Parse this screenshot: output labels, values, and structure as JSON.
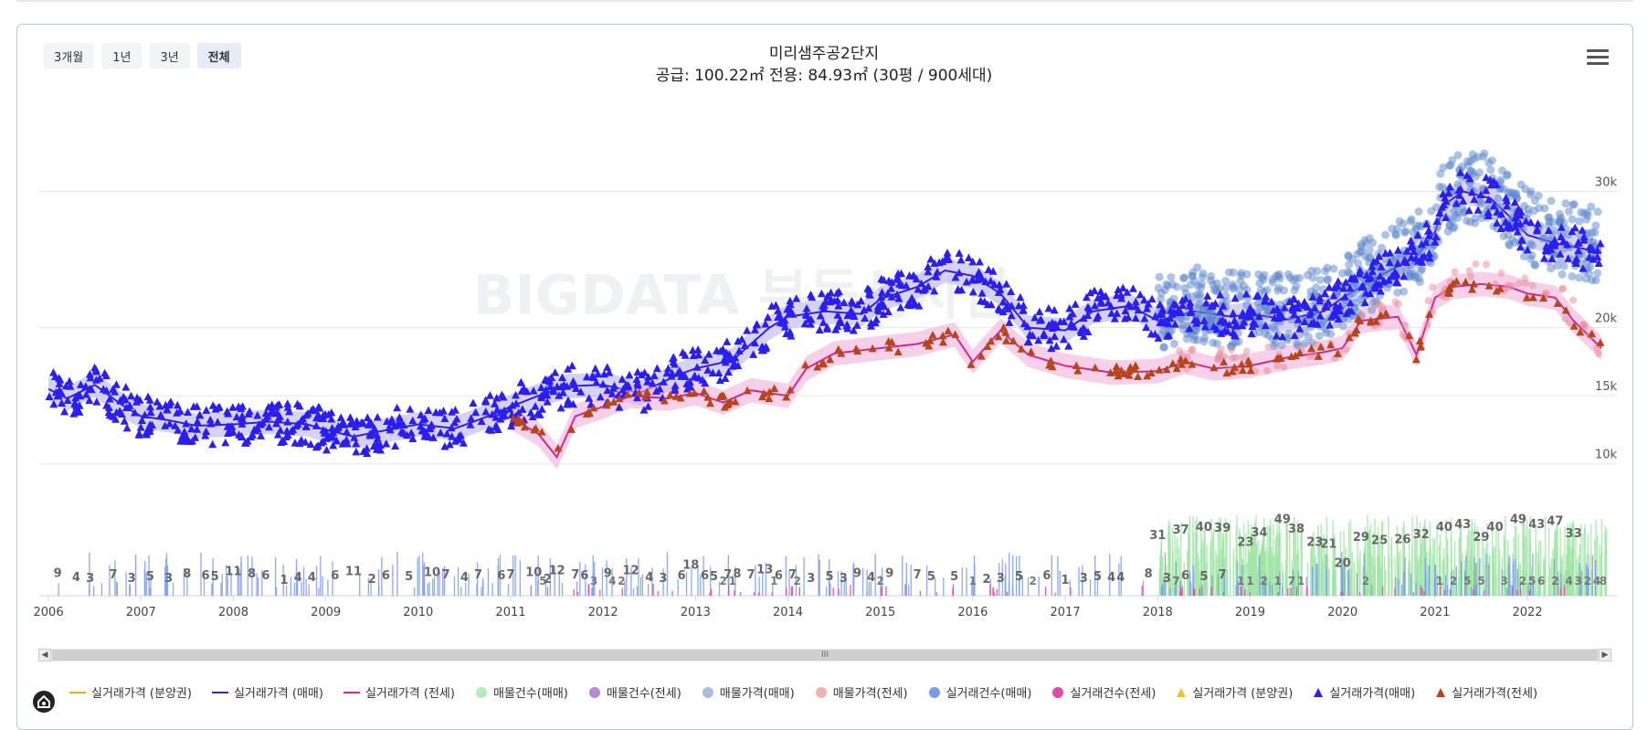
{
  "range_buttons": [
    {
      "label": "3개월",
      "active": false
    },
    {
      "label": "1년",
      "active": false
    },
    {
      "label": "3년",
      "active": false
    },
    {
      "label": "전체",
      "active": true
    }
  ],
  "menu_icon": "hamburger-menu-icon",
  "watermark": "BIGDATA 부동산지인",
  "scroll_thumb_label": "III",
  "colors": {
    "sale_line": "#3a1fe0",
    "sale_band": "#b9b4f0",
    "jeonse_line": "#d12a8e",
    "jeonse_band": "#f0b0d8",
    "sale_points": "#2a1ff0",
    "jeonse_points": "#b5451b",
    "listing_sale": "#5b86cc",
    "listing_jeonse": "#e88a9a",
    "count_sale": "#7a9be8",
    "count_jeonse": "#e04aa8",
    "listing_count_sale": "#9fe3a4",
    "grid": "#e6e6e6"
  },
  "legend": [
    {
      "label": "실거래가격 (분양권)",
      "type": "line",
      "color": "#f5a623"
    },
    {
      "label": "실거래가격 (매매)",
      "type": "line",
      "color": "#3a1fe0"
    },
    {
      "label": "실거래가격 (전세)",
      "type": "line",
      "color": "#d12a8e"
    },
    {
      "label": "매물건수(매매)",
      "type": "circle",
      "color": "#b4ecb8"
    },
    {
      "label": "매물건수(전세)",
      "type": "circle",
      "color": "#b58ad0"
    },
    {
      "label": "매물가격(매매)",
      "type": "circle",
      "color": "#a9bde0"
    },
    {
      "label": "매물가격(전세)",
      "type": "circle",
      "color": "#f2b1b1"
    },
    {
      "label": "실거래건수(매매)",
      "type": "circle",
      "color": "#7a9be8"
    },
    {
      "label": "실거래건수(전세)",
      "type": "circle",
      "color": "#e04aa8"
    },
    {
      "label": "실거래가격 (분양권)",
      "type": "triangle",
      "color": "#f0c030"
    },
    {
      "label": "실거래가격(매매)",
      "type": "triangle",
      "color": "#2a1ff0"
    },
    {
      "label": "실거래가격(전세)",
      "type": "triangle",
      "color": "#b5451b"
    }
  ],
  "chart_data": {
    "type": "line",
    "title": "미리샘주공2단지",
    "subtitle": "공급: 100.22㎡ 전용: 84.93㎡ (30평 / 900세대)",
    "xlabel": "",
    "ylabel": "",
    "x_ticks": [
      "2006",
      "2007",
      "2008",
      "2009",
      "2010",
      "2011",
      "2012",
      "2013",
      "2014",
      "2015",
      "2016",
      "2017",
      "2018",
      "2019",
      "2020",
      "2021",
      "2022"
    ],
    "xlim": [
      2005.95,
      2022.85
    ],
    "y_ticks": [
      {
        "value": 10000,
        "label": "10k"
      },
      {
        "value": 15000,
        "label": "15k"
      },
      {
        "value": 20000,
        "label": "20k"
      },
      {
        "value": 30000,
        "label": "30k"
      }
    ],
    "ylim": [
      7500,
      36000
    ],
    "grid": true,
    "legend_position": "bottom",
    "series": [
      {
        "name": "실거래가격 (매매)",
        "type": "line",
        "points": [
          [
            2006.0,
            15500
          ],
          [
            2006.2,
            14800
          ],
          [
            2006.5,
            15800
          ],
          [
            2006.8,
            14300
          ],
          [
            2007.0,
            13500
          ],
          [
            2007.3,
            13200
          ],
          [
            2007.6,
            12800
          ],
          [
            2008.0,
            12900
          ],
          [
            2008.4,
            13100
          ],
          [
            2008.8,
            12900
          ],
          [
            2009.0,
            12500
          ],
          [
            2009.3,
            12000
          ],
          [
            2009.6,
            12400
          ],
          [
            2010.0,
            12900
          ],
          [
            2010.4,
            12600
          ],
          [
            2010.8,
            13600
          ],
          [
            2011.0,
            14200
          ],
          [
            2011.3,
            15000
          ],
          [
            2011.6,
            15700
          ],
          [
            2012.0,
            15800
          ],
          [
            2012.4,
            15200
          ],
          [
            2012.8,
            16500
          ],
          [
            2013.0,
            17000
          ],
          [
            2013.4,
            17600
          ],
          [
            2013.8,
            20000
          ],
          [
            2014.0,
            20800
          ],
          [
            2014.4,
            21200
          ],
          [
            2014.8,
            21000
          ],
          [
            2015.0,
            22100
          ],
          [
            2015.4,
            23000
          ],
          [
            2015.7,
            24200
          ],
          [
            2016.0,
            23800
          ],
          [
            2016.3,
            22500
          ],
          [
            2016.6,
            20000
          ],
          [
            2017.0,
            19800
          ],
          [
            2017.3,
            21200
          ],
          [
            2017.7,
            21600
          ],
          [
            2018.0,
            20500
          ],
          [
            2018.4,
            21200
          ],
          [
            2018.8,
            20800
          ],
          [
            2019.0,
            21000
          ],
          [
            2019.4,
            20600
          ],
          [
            2019.8,
            21200
          ],
          [
            2020.0,
            22200
          ],
          [
            2020.4,
            23800
          ],
          [
            2020.8,
            25200
          ],
          [
            2021.0,
            27000
          ],
          [
            2021.1,
            29000
          ],
          [
            2021.3,
            30000
          ],
          [
            2021.6,
            29500
          ],
          [
            2021.8,
            28200
          ],
          [
            2022.0,
            26800
          ],
          [
            2022.3,
            26200
          ],
          [
            2022.6,
            25800
          ],
          [
            2022.8,
            25500
          ]
        ]
      },
      {
        "name": "실거래가격 (전세)",
        "type": "line",
        "points": [
          [
            2011.0,
            13400
          ],
          [
            2011.3,
            12200
          ],
          [
            2011.5,
            10500
          ],
          [
            2011.7,
            13500
          ],
          [
            2012.0,
            14200
          ],
          [
            2012.3,
            15000
          ],
          [
            2012.7,
            14800
          ],
          [
            2013.0,
            15200
          ],
          [
            2013.3,
            14500
          ],
          [
            2013.6,
            15400
          ],
          [
            2014.0,
            15000
          ],
          [
            2014.2,
            17000
          ],
          [
            2014.5,
            18100
          ],
          [
            2015.0,
            18500
          ],
          [
            2015.4,
            18800
          ],
          [
            2015.8,
            19500
          ],
          [
            2016.0,
            17500
          ],
          [
            2016.3,
            19800
          ],
          [
            2016.6,
            18000
          ],
          [
            2017.0,
            17200
          ],
          [
            2017.5,
            16700
          ],
          [
            2018.0,
            16800
          ],
          [
            2018.3,
            17500
          ],
          [
            2018.6,
            17000
          ],
          [
            2019.0,
            17200
          ],
          [
            2019.4,
            17800
          ],
          [
            2019.8,
            18200
          ],
          [
            2020.0,
            18500
          ],
          [
            2020.2,
            20500
          ],
          [
            2020.6,
            20800
          ],
          [
            2020.8,
            18000
          ],
          [
            2021.0,
            22200
          ],
          [
            2021.2,
            23000
          ],
          [
            2021.5,
            23200
          ],
          [
            2021.8,
            23000
          ],
          [
            2022.0,
            22500
          ],
          [
            2022.3,
            22200
          ],
          [
            2022.5,
            20500
          ],
          [
            2022.8,
            18500
          ]
        ]
      }
    ],
    "transaction_counts_sale": [
      {
        "x": 2006.1,
        "v": 9
      },
      {
        "x": 2006.3,
        "v": 4
      },
      {
        "x": 2006.45,
        "v": 3
      },
      {
        "x": 2006.7,
        "v": 7
      },
      {
        "x": 2006.9,
        "v": 3
      },
      {
        "x": 2007.1,
        "v": 5
      },
      {
        "x": 2007.3,
        "v": 3
      },
      {
        "x": 2007.5,
        "v": 8
      },
      {
        "x": 2007.7,
        "v": 6
      },
      {
        "x": 2007.8,
        "v": 5
      },
      {
        "x": 2008.0,
        "v": 11
      },
      {
        "x": 2008.2,
        "v": 8
      },
      {
        "x": 2008.35,
        "v": 6
      },
      {
        "x": 2008.55,
        "v": 1
      },
      {
        "x": 2008.7,
        "v": 4
      },
      {
        "x": 2008.85,
        "v": 4
      },
      {
        "x": 2009.1,
        "v": 6
      },
      {
        "x": 2009.3,
        "v": 11
      },
      {
        "x": 2009.5,
        "v": 2
      },
      {
        "x": 2009.65,
        "v": 6
      },
      {
        "x": 2009.9,
        "v": 5
      },
      {
        "x": 2010.15,
        "v": 10
      },
      {
        "x": 2010.3,
        "v": 7
      },
      {
        "x": 2010.5,
        "v": 4
      },
      {
        "x": 2010.65,
        "v": 7
      },
      {
        "x": 2010.9,
        "v": 6
      },
      {
        "x": 2011.0,
        "v": 7
      },
      {
        "x": 2011.25,
        "v": 10
      },
      {
        "x": 2011.4,
        "v": 2
      },
      {
        "x": 2011.5,
        "v": 12
      },
      {
        "x": 2011.7,
        "v": 7
      },
      {
        "x": 2011.8,
        "v": 6
      },
      {
        "x": 2012.05,
        "v": 9
      },
      {
        "x": 2012.3,
        "v": 12
      },
      {
        "x": 2012.5,
        "v": 4
      },
      {
        "x": 2012.65,
        "v": 3
      },
      {
        "x": 2012.85,
        "v": 6
      },
      {
        "x": 2012.95,
        "v": 18
      },
      {
        "x": 2013.1,
        "v": 6
      },
      {
        "x": 2013.2,
        "v": 5
      },
      {
        "x": 2013.35,
        "v": 7
      },
      {
        "x": 2013.45,
        "v": 8
      },
      {
        "x": 2013.6,
        "v": 7
      },
      {
        "x": 2013.75,
        "v": 13
      },
      {
        "x": 2013.9,
        "v": 6
      },
      {
        "x": 2014.05,
        "v": 7
      },
      {
        "x": 2014.25,
        "v": 3
      },
      {
        "x": 2014.45,
        "v": 5
      },
      {
        "x": 2014.6,
        "v": 3
      },
      {
        "x": 2014.75,
        "v": 9
      },
      {
        "x": 2014.9,
        "v": 4
      },
      {
        "x": 2015.1,
        "v": 9
      },
      {
        "x": 2015.4,
        "v": 7
      },
      {
        "x": 2015.55,
        "v": 5
      },
      {
        "x": 2015.8,
        "v": 5
      },
      {
        "x": 2016.15,
        "v": 2
      },
      {
        "x": 2016.3,
        "v": 3
      },
      {
        "x": 2016.5,
        "v": 5
      },
      {
        "x": 2016.8,
        "v": 6
      },
      {
        "x": 2017.0,
        "v": 1
      },
      {
        "x": 2017.2,
        "v": 3
      },
      {
        "x": 2017.35,
        "v": 5
      },
      {
        "x": 2017.5,
        "v": 4
      },
      {
        "x": 2017.6,
        "v": 4
      },
      {
        "x": 2017.9,
        "v": 8
      },
      {
        "x": 2018.0,
        "v": 31
      },
      {
        "x": 2018.1,
        "v": 3
      },
      {
        "x": 2018.25,
        "v": 37
      },
      {
        "x": 2018.3,
        "v": 6
      },
      {
        "x": 2018.5,
        "v": 40
      },
      {
        "x": 2018.5,
        "v": 5
      },
      {
        "x": 2018.7,
        "v": 39
      },
      {
        "x": 2018.7,
        "v": 7
      },
      {
        "x": 2018.95,
        "v": 23
      },
      {
        "x": 2019.1,
        "v": 34
      },
      {
        "x": 2019.35,
        "v": 49
      },
      {
        "x": 2019.5,
        "v": 38
      },
      {
        "x": 2019.7,
        "v": 23
      },
      {
        "x": 2019.85,
        "v": 21
      },
      {
        "x": 2020.0,
        "v": 20
      },
      {
        "x": 2020.2,
        "v": 29
      },
      {
        "x": 2020.4,
        "v": 25
      },
      {
        "x": 2020.65,
        "v": 26
      },
      {
        "x": 2020.85,
        "v": 32
      },
      {
        "x": 2021.1,
        "v": 40
      },
      {
        "x": 2021.3,
        "v": 43
      },
      {
        "x": 2021.5,
        "v": 29
      },
      {
        "x": 2021.65,
        "v": 40
      },
      {
        "x": 2021.9,
        "v": 49
      },
      {
        "x": 2022.1,
        "v": 43
      },
      {
        "x": 2022.3,
        "v": 47
      },
      {
        "x": 2022.5,
        "v": 33
      }
    ],
    "transaction_counts_jeonse": [
      {
        "x": 2011.35,
        "v": 5
      },
      {
        "x": 2011.9,
        "v": 3
      },
      {
        "x": 2012.1,
        "v": 4
      },
      {
        "x": 2012.2,
        "v": 2
      },
      {
        "x": 2013.3,
        "v": 2
      },
      {
        "x": 2013.4,
        "v": 1
      },
      {
        "x": 2013.85,
        "v": 1
      },
      {
        "x": 2014.1,
        "v": 2
      },
      {
        "x": 2015.0,
        "v": 2
      },
      {
        "x": 2016.0,
        "v": 1
      },
      {
        "x": 2016.65,
        "v": 2
      },
      {
        "x": 2018.2,
        "v": 7
      },
      {
        "x": 2018.9,
        "v": 1
      },
      {
        "x": 2019.0,
        "v": 1
      },
      {
        "x": 2019.15,
        "v": 2
      },
      {
        "x": 2019.3,
        "v": 1
      },
      {
        "x": 2019.45,
        "v": 7
      },
      {
        "x": 2019.55,
        "v": 1
      },
      {
        "x": 2020.25,
        "v": 2
      },
      {
        "x": 2021.05,
        "v": 1
      },
      {
        "x": 2021.2,
        "v": 2
      },
      {
        "x": 2021.35,
        "v": 5
      },
      {
        "x": 2021.5,
        "v": 5
      },
      {
        "x": 2021.75,
        "v": 3
      },
      {
        "x": 2021.95,
        "v": 2
      },
      {
        "x": 2022.05,
        "v": 5
      },
      {
        "x": 2022.15,
        "v": 6
      },
      {
        "x": 2022.3,
        "v": 2
      },
      {
        "x": 2022.45,
        "v": 4
      },
      {
        "x": 2022.55,
        "v": 3
      },
      {
        "x": 2022.65,
        "v": 2
      },
      {
        "x": 2022.75,
        "v": 4
      },
      {
        "x": 2022.82,
        "v": 8
      }
    ]
  }
}
